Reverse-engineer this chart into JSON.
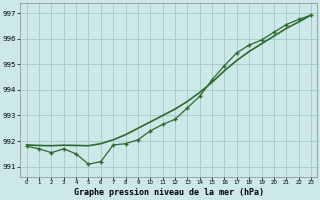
{
  "title": "Graphe pression niveau de la mer (hPa)",
  "background_color": "#cce8e8",
  "grid_color": "#aacccc",
  "line_color": "#2d6a2d",
  "x_labels": [
    "0",
    "1",
    "2",
    "3",
    "4",
    "5",
    "6",
    "7",
    "8",
    "9",
    "10",
    "11",
    "12",
    "13",
    "14",
    "15",
    "16",
    "17",
    "18",
    "19",
    "20",
    "21",
    "22",
    "23"
  ],
  "ylim": [
    990.6,
    997.4
  ],
  "xlim": [
    -0.5,
    23.5
  ],
  "yticks": [
    991,
    992,
    993,
    994,
    995,
    996,
    997
  ],
  "series_marker": [
    991.8,
    991.7,
    991.55,
    991.7,
    991.5,
    991.1,
    991.2,
    991.85,
    991.9,
    992.05,
    992.4,
    992.65,
    992.85,
    993.3,
    993.75,
    994.4,
    994.95,
    995.45,
    995.75,
    995.95,
    996.25,
    996.55,
    996.75,
    996.92
  ],
  "series_smooth": [
    991.85,
    991.83,
    991.82,
    991.84,
    991.83,
    991.82,
    991.9,
    992.05,
    992.25,
    992.5,
    992.75,
    993.0,
    993.25,
    993.55,
    993.9,
    994.3,
    994.75,
    995.15,
    995.5,
    995.8,
    996.1,
    996.4,
    996.65,
    996.92
  ]
}
